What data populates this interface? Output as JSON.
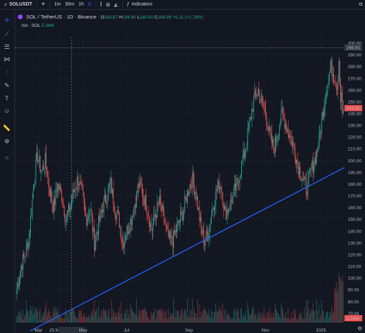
{
  "topbar": {
    "symbol": "SOLUSDT",
    "add_icon": "+",
    "intervals": [
      "1m",
      "30m",
      "1h",
      "D"
    ],
    "indicators_label": "Indicators"
  },
  "legend": {
    "title": "SOL / TetherUS · 1D · Binance",
    "o_label": "O",
    "o": "183.87",
    "h_label": "H",
    "h": "194.60",
    "l_label": "L",
    "l": "180.92",
    "c_label": "C",
    "c": "188.99",
    "change": "+5.11 (+2.78%)"
  },
  "volume": {
    "label": "Vol · SOL",
    "value": "5.34M"
  },
  "tools": [
    "crosshair-icon",
    "trendline-icon",
    "fib-icon",
    "pattern-icon",
    "projection-icon",
    "brush-icon",
    "text-icon",
    "emoji-icon",
    "ruler-icon",
    "zoom-icon",
    "magnet-icon"
  ],
  "chart_data": {
    "type": "candlestick",
    "ylim": [
      62,
      305
    ],
    "y_ticks": [
      "300.00",
      "290.00",
      "280.00",
      "270.00",
      "260.00",
      "250.00",
      "240.00",
      "230.00",
      "220.00",
      "210.00",
      "200.00",
      "190.00",
      "180.00",
      "170.00",
      "160.00",
      "150.00",
      "140.00",
      "130.00",
      "120.00",
      "110.00",
      "100.00",
      "90.00",
      "80.00",
      "70.00"
    ],
    "x_ticks": [
      "Mar",
      "25 Mar '24",
      "May",
      "Jul",
      "Sep",
      "Nov",
      "2025",
      "Mar"
    ],
    "crosshair_price": "295.91",
    "last_price": "244.30",
    "volume_badge": "2.24M",
    "trendline": {
      "from": [
        "Feb '24",
        58
      ],
      "to": [
        "Mar '25",
        193
      ]
    },
    "close_path": [
      90,
      110,
      120,
      135,
      175,
      205,
      190,
      200,
      175,
      160,
      180,
      170,
      150,
      160,
      175,
      185,
      170,
      150,
      160,
      130,
      145,
      160,
      170,
      180,
      160,
      150,
      130,
      140,
      150,
      165,
      180,
      170,
      160,
      140,
      155,
      165,
      150,
      135,
      130,
      140,
      150,
      160,
      175,
      185,
      170,
      145,
      130,
      140,
      160,
      175,
      180,
      155,
      160,
      170,
      180,
      195,
      210,
      230,
      250,
      260,
      250,
      240,
      220,
      210,
      225,
      240,
      230,
      220,
      210,
      195,
      185,
      175,
      190,
      200,
      215,
      240,
      265,
      280,
      270,
      250,
      245
    ]
  },
  "colors": {
    "up": "#26a69a",
    "down": "#ef5350",
    "trend": "#2962ff",
    "bg": "#131722",
    "grid": "#1e222d"
  }
}
